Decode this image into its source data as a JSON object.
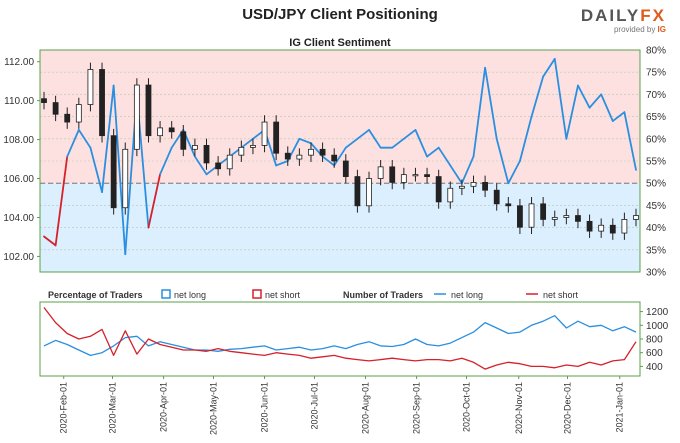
{
  "header": {
    "title": "USD/JPY Client Positioning",
    "logo_main": "DAILY",
    "logo_accent": "FX",
    "logo_sub": "provided by",
    "logo_ig": "IG"
  },
  "colors": {
    "net_long": "#2a8fe0",
    "net_short": "#d6202a",
    "long_fill": "#dcefff",
    "short_fill": "#fde0e0",
    "candle": "#222222"
  },
  "chart_data": [
    {
      "type": "line",
      "title": "IG Client Sentiment",
      "description_series": [
        "price candles",
        "net long %"
      ],
      "y_left": {
        "ticks": [
          "112.00",
          "110.00",
          "108.00",
          "106.00",
          "104.00",
          "102.00"
        ],
        "ylim": [
          101.2,
          112.6
        ]
      },
      "y_right": {
        "ticks": [
          "80%",
          "75%",
          "70%",
          "65%",
          "60%",
          "55%",
          "50%",
          "45%",
          "40%",
          "35%",
          "30%"
        ],
        "ylim": [
          30,
          80
        ]
      },
      "reference_levels": [
        {
          "label": "50%",
          "value": 50
        }
      ],
      "x": [
        "2020-01-20",
        "2020-01-27",
        "2020-02-03",
        "2020-02-10",
        "2020-02-17",
        "2020-02-24",
        "2020-03-02",
        "2020-03-09",
        "2020-03-16",
        "2020-03-23",
        "2020-03-30",
        "2020-04-06",
        "2020-04-13",
        "2020-04-20",
        "2020-04-27",
        "2020-05-04",
        "2020-05-11",
        "2020-05-18",
        "2020-05-25",
        "2020-06-01",
        "2020-06-08",
        "2020-06-15",
        "2020-06-22",
        "2020-06-29",
        "2020-07-06",
        "2020-07-13",
        "2020-07-20",
        "2020-07-27",
        "2020-08-03",
        "2020-08-10",
        "2020-08-17",
        "2020-08-24",
        "2020-08-31",
        "2020-09-07",
        "2020-09-14",
        "2020-09-21",
        "2020-09-28",
        "2020-10-05",
        "2020-10-12",
        "2020-10-19",
        "2020-10-26",
        "2020-11-02",
        "2020-11-09",
        "2020-11-16",
        "2020-11-23",
        "2020-11-30",
        "2020-12-07",
        "2020-12-14",
        "2020-12-21",
        "2020-12-28",
        "2021-01-04",
        "2021-01-11"
      ],
      "price": [
        109.9,
        109.3,
        108.9,
        109.8,
        111.6,
        108.2,
        104.5,
        107.5,
        110.8,
        108.2,
        108.6,
        108.4,
        107.5,
        107.7,
        106.8,
        106.5,
        107.2,
        107.6,
        107.7,
        108.9,
        107.3,
        107.0,
        107.2,
        107.5,
        107.2,
        106.9,
        106.1,
        104.6,
        106.0,
        106.6,
        105.8,
        106.2,
        106.2,
        106.1,
        104.8,
        105.5,
        105.6,
        105.8,
        105.4,
        104.7,
        104.6,
        103.5,
        104.7,
        103.9,
        104.0,
        104.1,
        103.8,
        103.3,
        103.6,
        103.2,
        103.9,
        104.1
      ],
      "net_long_pct": [
        38,
        36,
        56,
        62,
        58,
        48,
        72,
        34,
        70,
        40,
        52,
        58,
        62,
        56,
        52,
        54,
        56,
        58,
        60,
        62,
        54,
        55,
        60,
        59,
        56,
        54,
        58,
        60,
        62,
        58,
        58,
        60,
        62,
        56,
        58,
        54,
        50,
        56,
        76,
        60,
        50,
        55,
        65,
        74,
        78,
        60,
        72,
        67,
        70,
        64,
        66,
        53
      ]
    },
    {
      "type": "line",
      "legend_left": {
        "label": "Percentage of Traders",
        "items": [
          "net long",
          "net short"
        ]
      },
      "legend_right": {
        "label": "Number of Traders",
        "items": [
          "net long",
          "net short"
        ]
      },
      "y_right": {
        "ticks": [
          "1200",
          "1000",
          "800",
          "600",
          "400"
        ],
        "ylim": [
          260,
          1340
        ]
      },
      "net_long_count": [
        700,
        780,
        720,
        640,
        560,
        600,
        700,
        820,
        840,
        700,
        760,
        720,
        680,
        640,
        640,
        620,
        650,
        660,
        680,
        700,
        640,
        660,
        680,
        640,
        660,
        700,
        660,
        720,
        760,
        700,
        690,
        720,
        800,
        720,
        700,
        740,
        820,
        900,
        1040,
        960,
        880,
        900,
        1000,
        1060,
        1140,
        960,
        1060,
        980,
        1000,
        920,
        980,
        900
      ],
      "net_short_count": [
        1260,
        1040,
        880,
        800,
        840,
        940,
        560,
        920,
        580,
        800,
        720,
        680,
        640,
        640,
        620,
        660,
        620,
        600,
        580,
        560,
        600,
        580,
        560,
        520,
        540,
        560,
        520,
        500,
        480,
        500,
        520,
        500,
        480,
        500,
        500,
        480,
        520,
        460,
        360,
        420,
        460,
        440,
        400,
        400,
        380,
        420,
        400,
        460,
        420,
        480,
        500,
        760
      ]
    },
    {
      "type": "table",
      "x_tick_labels": [
        "2020-Feb-01",
        "2020-Mar-01",
        "2020-Apr-01",
        "2020-May-01",
        "2020-Jun-01",
        "2020-Jul-01",
        "2020-Aug-01",
        "2020-Sep-01",
        "2020-Oct-01",
        "2020-Nov-01",
        "2020-Dec-01",
        "2021-Jan-01"
      ],
      "x_tick_index": [
        1.7,
        5.9,
        10.3,
        14.6,
        19.0,
        23.3,
        27.7,
        32.1,
        36.4,
        40.9,
        45.1,
        49.6
      ]
    }
  ]
}
